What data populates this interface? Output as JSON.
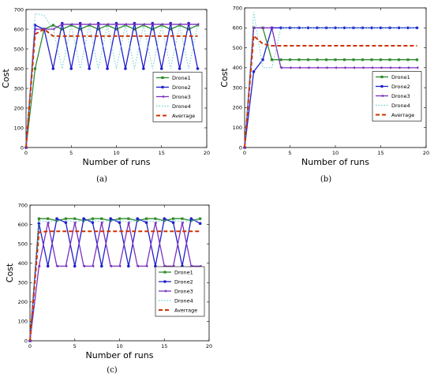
{
  "figure": {
    "panel_labels": [
      "(a)",
      "(b)",
      "(c)"
    ]
  },
  "chart_data": [
    {
      "type": "line",
      "panel": "(a)",
      "title": "",
      "xlabel": "Number of runs",
      "ylabel": "Cost",
      "xlim": [
        0,
        20
      ],
      "ylim": [
        0,
        700
      ],
      "xticks": [
        0,
        5,
        10,
        15,
        20
      ],
      "yticks": [
        0,
        100,
        200,
        300,
        400,
        500,
        600,
        700
      ],
      "legend_position": "center-right",
      "grid": false,
      "x": [
        0,
        1,
        2,
        3,
        4,
        5,
        6,
        7,
        8,
        9,
        10,
        11,
        12,
        13,
        14,
        15,
        16,
        17,
        18,
        19
      ],
      "series": [
        {
          "name": "Drone1",
          "color": "#2e8b2e",
          "style": "solid",
          "marker": "square",
          "values": [
            0,
            400,
            600,
            620,
            600,
            620,
            600,
            620,
            600,
            620,
            600,
            620,
            600,
            620,
            600,
            620,
            600,
            620,
            600,
            620
          ]
        },
        {
          "name": "Drone2",
          "color": "#1f1fcc",
          "style": "solid",
          "marker": "circle",
          "values": [
            0,
            620,
            600,
            400,
            630,
            400,
            630,
            400,
            630,
            400,
            630,
            400,
            630,
            400,
            630,
            400,
            630,
            400,
            630,
            400
          ]
        },
        {
          "name": "Drone3",
          "color": "#7b2fbe",
          "style": "solid",
          "marker": "triangle",
          "values": [
            0,
            600,
            600,
            600,
            625,
            625,
            625,
            625,
            625,
            625,
            625,
            625,
            625,
            625,
            625,
            625,
            625,
            625,
            625,
            625
          ]
        },
        {
          "name": "Drone4",
          "color": "#66cccc",
          "style": "dotted",
          "marker": "none",
          "values": [
            0,
            680,
            670,
            600,
            400,
            620,
            400,
            620,
            400,
            620,
            400,
            620,
            400,
            620,
            400,
            620,
            400,
            620,
            400,
            620
          ]
        },
        {
          "name": "Averrage",
          "color": "#cc3300",
          "style": "dashed",
          "marker": "none",
          "values": [
            0,
            575,
            600,
            565,
            565,
            565,
            565,
            565,
            565,
            565,
            565,
            565,
            565,
            565,
            565,
            565,
            565,
            565,
            565,
            565
          ]
        }
      ]
    },
    {
      "type": "line",
      "panel": "(b)",
      "title": "",
      "xlabel": "Number of runs",
      "ylabel": "Cost",
      "xlim": [
        0,
        20
      ],
      "ylim": [
        0,
        700
      ],
      "xticks": [
        0,
        5,
        10,
        15,
        20
      ],
      "yticks": [
        0,
        100,
        200,
        300,
        400,
        500,
        600,
        700
      ],
      "legend_position": "center-right",
      "grid": false,
      "x": [
        0,
        1,
        2,
        3,
        4,
        5,
        6,
        7,
        8,
        9,
        10,
        11,
        12,
        13,
        14,
        15,
        16,
        17,
        18,
        19
      ],
      "series": [
        {
          "name": "Drone1",
          "color": "#2e8b2e",
          "style": "solid",
          "marker": "square",
          "values": [
            0,
            600,
            600,
            440,
            440,
            440,
            440,
            440,
            440,
            440,
            440,
            440,
            440,
            440,
            440,
            440,
            440,
            440,
            440,
            440
          ]
        },
        {
          "name": "Drone2",
          "color": "#1f1fcc",
          "style": "solid",
          "marker": "circle",
          "values": [
            0,
            380,
            440,
            600,
            600,
            600,
            600,
            600,
            600,
            600,
            600,
            600,
            600,
            600,
            600,
            600,
            600,
            600,
            600,
            600
          ]
        },
        {
          "name": "Drone3",
          "color": "#7b2fbe",
          "style": "solid",
          "marker": "triangle",
          "values": [
            0,
            600,
            600,
            600,
            400,
            400,
            400,
            400,
            400,
            400,
            400,
            400,
            400,
            400,
            400,
            400,
            400,
            400,
            400,
            400
          ]
        },
        {
          "name": "Drone4",
          "color": "#66cccc",
          "style": "dotted",
          "marker": "none",
          "values": [
            0,
            680,
            400,
            400,
            600,
            600,
            600,
            600,
            600,
            600,
            600,
            600,
            600,
            600,
            600,
            600,
            600,
            600,
            600,
            600
          ]
        },
        {
          "name": "Averrage",
          "color": "#cc3300",
          "style": "dashed",
          "marker": "none",
          "values": [
            0,
            560,
            520,
            510,
            510,
            510,
            510,
            510,
            510,
            510,
            510,
            510,
            510,
            510,
            510,
            510,
            510,
            510,
            510,
            510
          ]
        }
      ]
    },
    {
      "type": "line",
      "panel": "(c)",
      "title": "",
      "xlabel": "Number of runs",
      "ylabel": "Cost",
      "xlim": [
        0,
        20
      ],
      "ylim": [
        0,
        700
      ],
      "xticks": [
        0,
        5,
        10,
        15,
        20
      ],
      "yticks": [
        0,
        100,
        200,
        300,
        400,
        500,
        600,
        700
      ],
      "legend_position": "center-right",
      "grid": false,
      "x": [
        0,
        1,
        2,
        3,
        4,
        5,
        6,
        7,
        8,
        9,
        10,
        11,
        12,
        13,
        14,
        15,
        16,
        17,
        18,
        19
      ],
      "series": [
        {
          "name": "Drone1",
          "color": "#2e8b2e",
          "style": "solid",
          "marker": "square",
          "values": [
            0,
            630,
            630,
            620,
            630,
            630,
            620,
            630,
            630,
            620,
            630,
            630,
            620,
            630,
            630,
            620,
            630,
            630,
            620,
            630
          ]
        },
        {
          "name": "Drone2",
          "color": "#1f1fcc",
          "style": "solid",
          "marker": "circle",
          "values": [
            0,
            605,
            385,
            630,
            610,
            385,
            630,
            610,
            385,
            630,
            610,
            385,
            630,
            610,
            385,
            630,
            610,
            385,
            630,
            605
          ]
        },
        {
          "name": "Drone3",
          "color": "#7b2fbe",
          "style": "solid",
          "marker": "triangle",
          "values": [
            0,
            385,
            610,
            385,
            385,
            610,
            385,
            385,
            610,
            385,
            385,
            610,
            385,
            385,
            610,
            385,
            385,
            610,
            385,
            385
          ]
        },
        {
          "name": "Drone4",
          "color": "#66cccc",
          "style": "dotted",
          "marker": "none",
          "values": [
            0,
            620,
            615,
            620,
            620,
            615,
            620,
            620,
            615,
            620,
            620,
            615,
            620,
            620,
            615,
            620,
            620,
            615,
            620,
            620
          ]
        },
        {
          "name": "Averrage",
          "color": "#cc3300",
          "style": "dashed",
          "marker": "none",
          "values": [
            0,
            560,
            565,
            565,
            565,
            565,
            565,
            565,
            565,
            565,
            565,
            565,
            565,
            565,
            565,
            565,
            565,
            565,
            565,
            565
          ]
        }
      ]
    }
  ]
}
